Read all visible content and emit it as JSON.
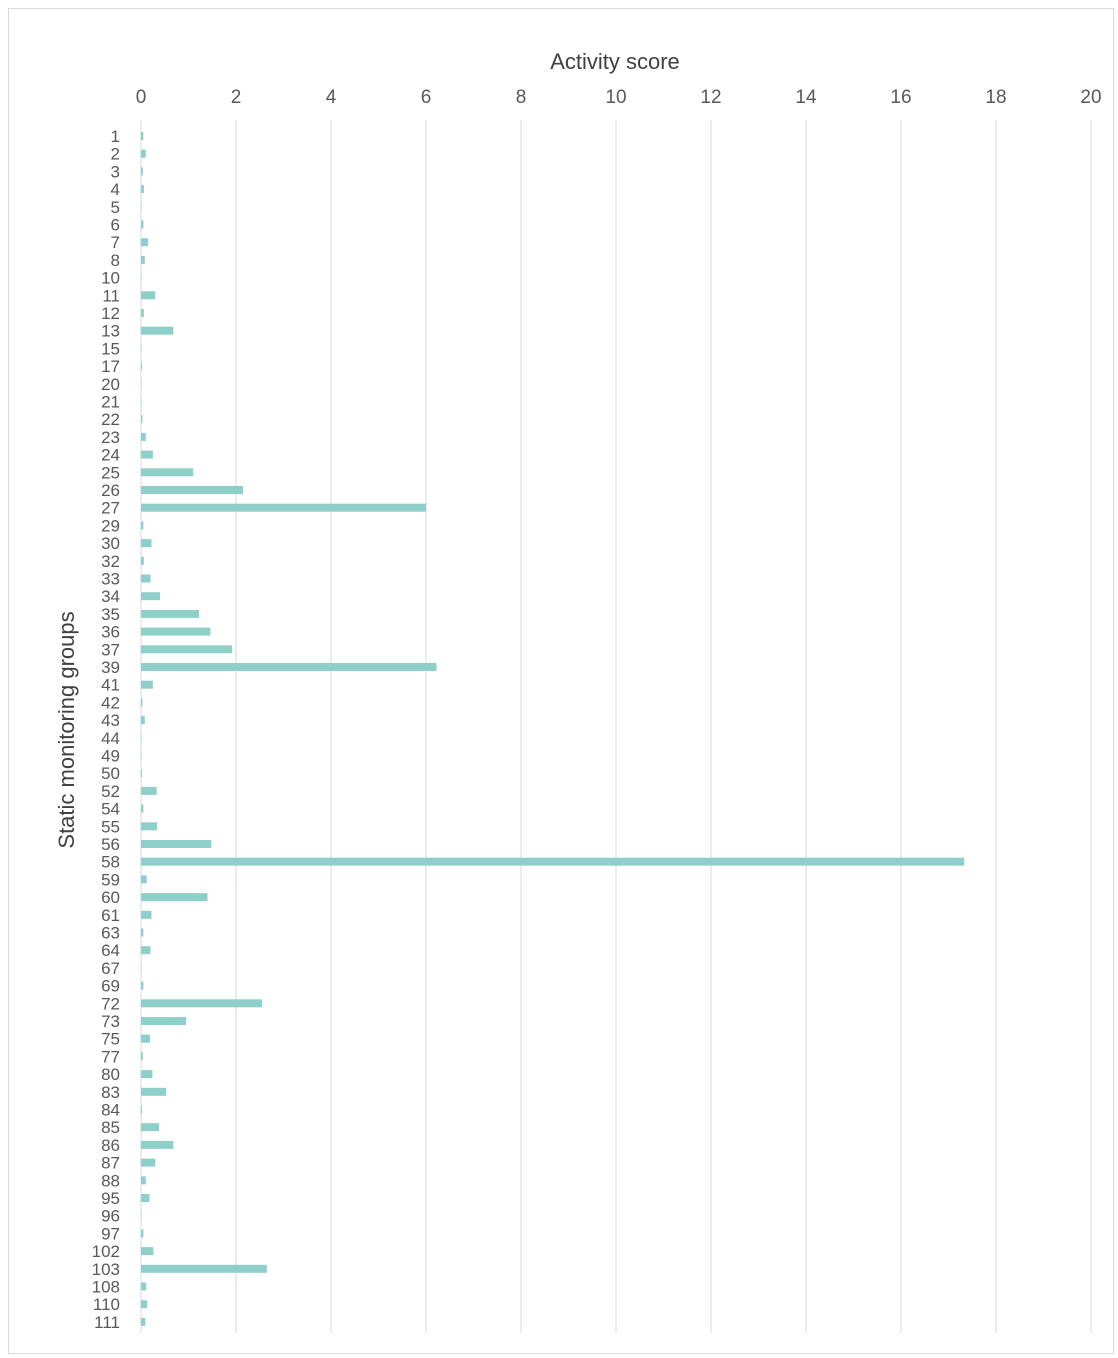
{
  "chart_data": {
    "type": "bar",
    "orientation": "horizontal",
    "title": "",
    "xlabel": "Activity score",
    "ylabel": "Static monitoring groups",
    "xlim": [
      0,
      20
    ],
    "x_ticks": [
      0,
      2,
      4,
      6,
      8,
      10,
      12,
      14,
      16,
      18,
      20
    ],
    "x_axis_position": "top",
    "grid": true,
    "grid_axis": "x",
    "legend": "none",
    "bar_color": "#8ecfc9",
    "grid_color": "#d9d9d9",
    "categories": [
      "1",
      "2",
      "3",
      "4",
      "5",
      "6",
      "7",
      "8",
      "10",
      "11",
      "12",
      "13",
      "15",
      "17",
      "20",
      "21",
      "22",
      "23",
      "24",
      "25",
      "26",
      "27",
      "29",
      "30",
      "32",
      "33",
      "34",
      "35",
      "36",
      "37",
      "39",
      "41",
      "42",
      "43",
      "44",
      "49",
      "50",
      "52",
      "54",
      "55",
      "56",
      "58",
      "59",
      "60",
      "61",
      "63",
      "64",
      "67",
      "69",
      "72",
      "73",
      "75",
      "77",
      "80",
      "83",
      "84",
      "85",
      "86",
      "87",
      "88",
      "95",
      "96",
      "97",
      "102",
      "103",
      "108",
      "110",
      "111"
    ],
    "values": [
      0.05,
      0.1,
      0.04,
      0.06,
      0.01,
      0.05,
      0.15,
      0.08,
      0.01,
      0.3,
      0.06,
      0.68,
      0.01,
      0.02,
      0.01,
      0.01,
      0.03,
      0.1,
      0.25,
      1.1,
      2.15,
      6.0,
      0.05,
      0.22,
      0.06,
      0.2,
      0.4,
      1.22,
      1.46,
      1.92,
      6.22,
      0.25,
      0.03,
      0.08,
      0.01,
      0.01,
      0.02,
      0.33,
      0.05,
      0.34,
      1.48,
      17.33,
      0.12,
      1.4,
      0.22,
      0.05,
      0.2,
      0.01,
      0.05,
      2.55,
      0.95,
      0.19,
      0.04,
      0.24,
      0.53,
      0.02,
      0.38,
      0.68,
      0.3,
      0.1,
      0.18,
      0.01,
      0.05,
      0.26,
      2.65,
      0.11,
      0.13,
      0.09
    ]
  }
}
